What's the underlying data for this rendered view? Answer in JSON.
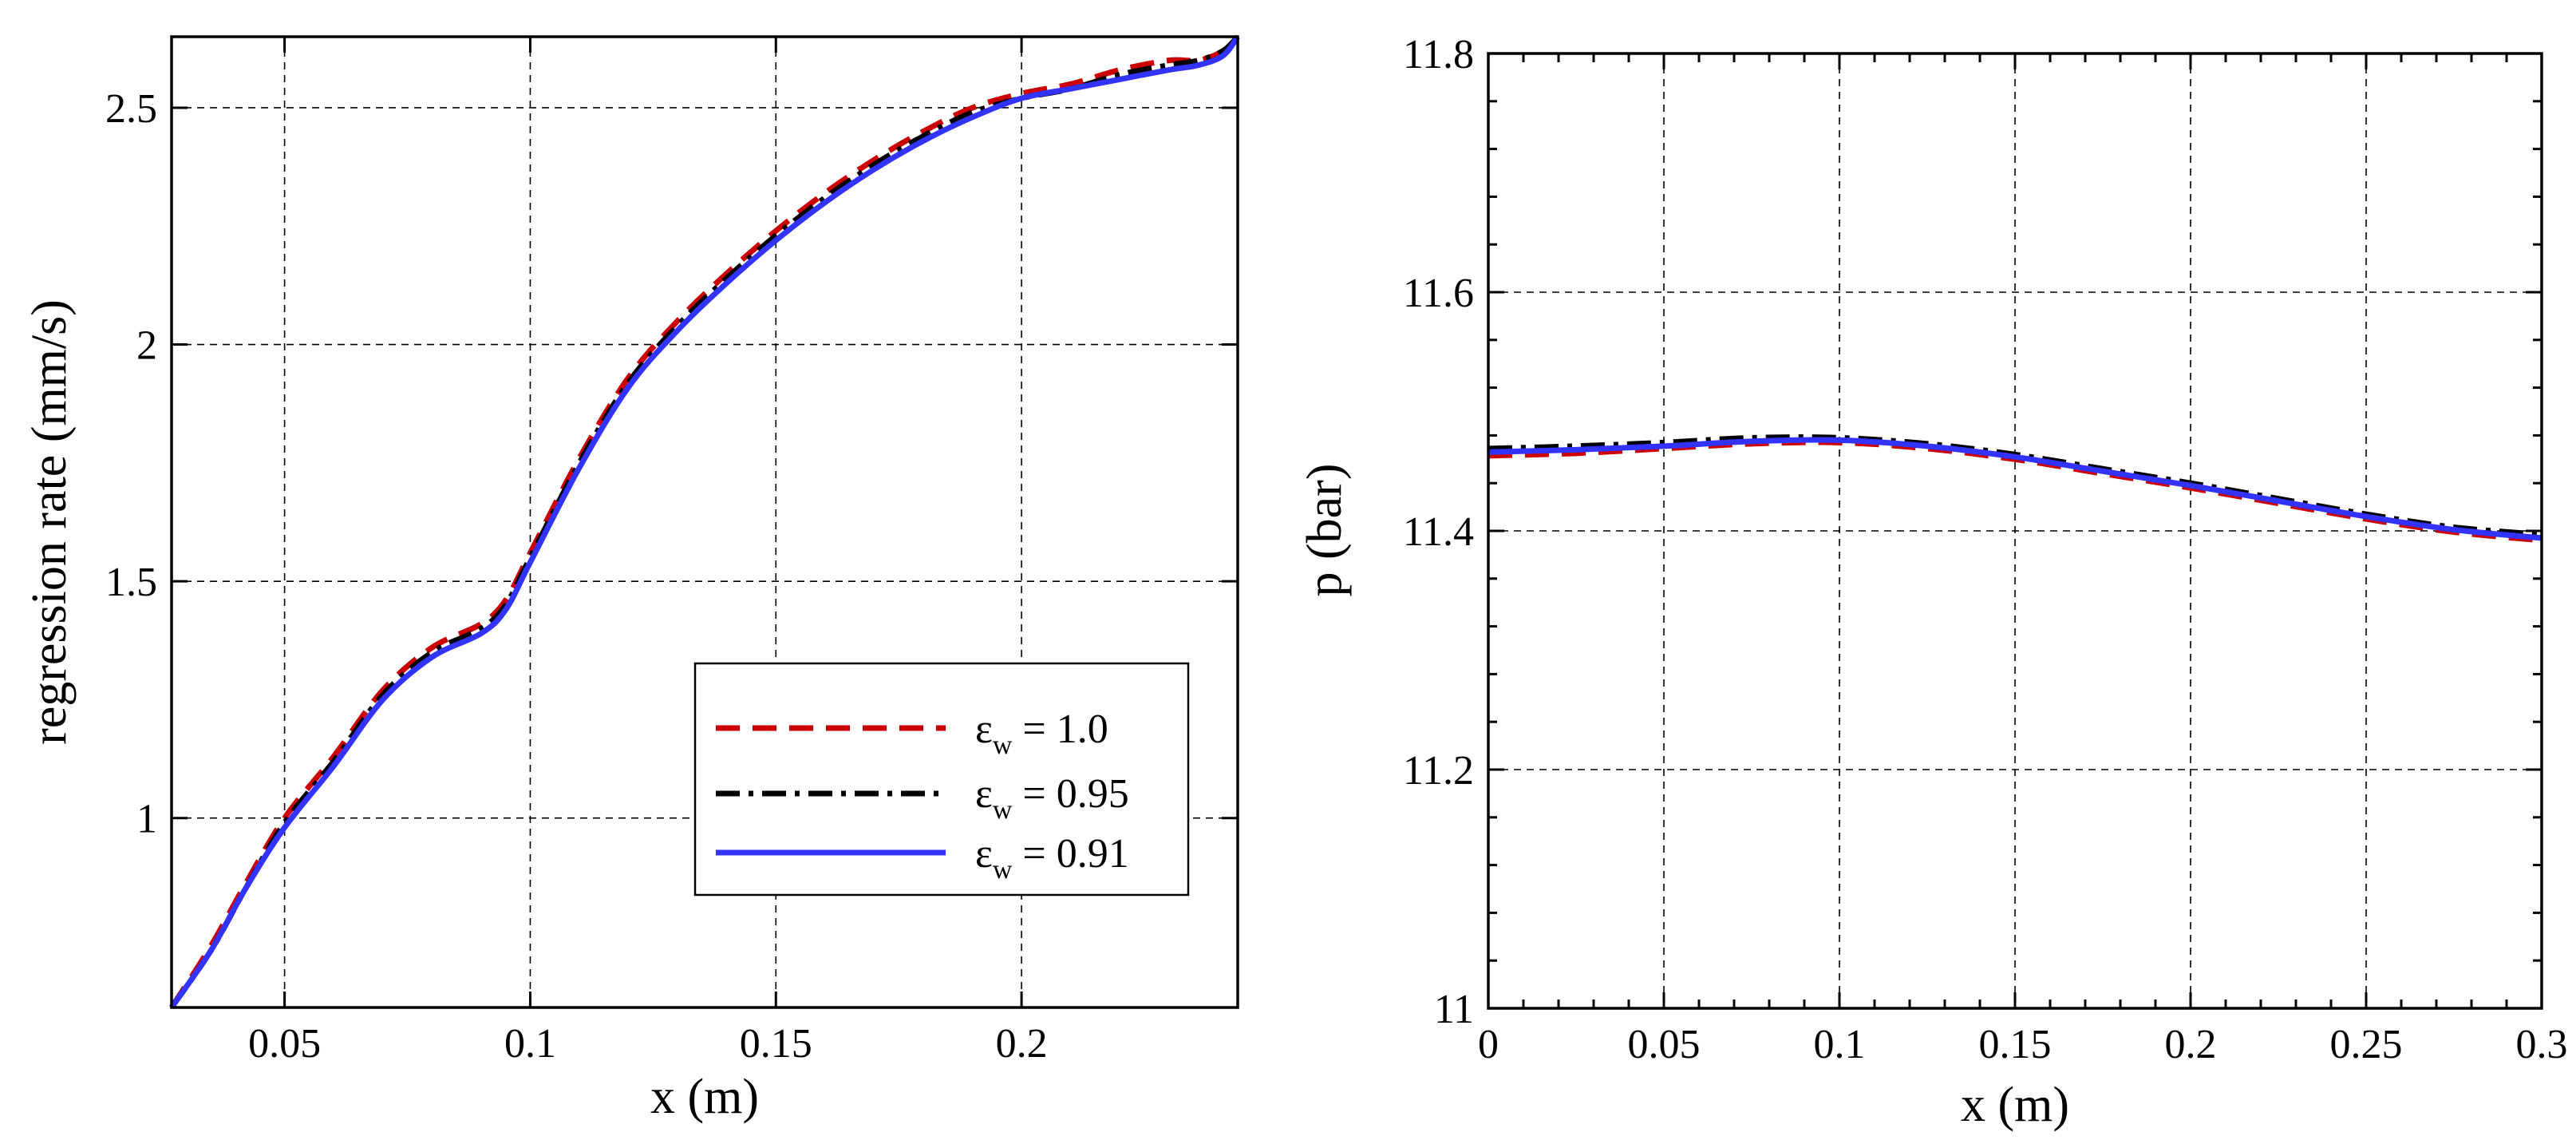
{
  "chart_data": [
    {
      "type": "line",
      "title": "",
      "xlabel": "x (m)",
      "ylabel": "regression rate (mm/s)",
      "xlim": [
        0.027,
        0.244
      ],
      "ylim": [
        0.6,
        2.65
      ],
      "xticks": [
        0.05,
        0.1,
        0.15,
        0.2
      ],
      "xtick_labels": [
        "0.05",
        "0.1",
        "0.15",
        "0.2"
      ],
      "yticks": [
        1,
        1.5,
        2,
        2.5
      ],
      "ytick_labels": [
        "1",
        "1.5",
        "2",
        "2.5"
      ],
      "grid": true,
      "legend_position": "lower-right",
      "series": [
        {
          "name": "εw = 1.0",
          "legend_symbol": "ε",
          "legend_sub": "w",
          "legend_value": " = 1.0",
          "color": "#cc0000",
          "dash": "dashed",
          "x": [
            0.027,
            0.035,
            0.042,
            0.05,
            0.06,
            0.07,
            0.08,
            0.09,
            0.095,
            0.1,
            0.11,
            0.12,
            0.13,
            0.14,
            0.15,
            0.16,
            0.17,
            0.18,
            0.19,
            0.2,
            0.21,
            0.22,
            0.23,
            0.236,
            0.241,
            0.244
          ],
          "y": [
            0.6,
            0.73,
            0.86,
            1.0,
            1.13,
            1.27,
            1.36,
            1.41,
            1.46,
            1.56,
            1.76,
            1.93,
            2.05,
            2.15,
            2.24,
            2.32,
            2.39,
            2.45,
            2.5,
            2.53,
            2.55,
            2.58,
            2.6,
            2.6,
            2.62,
            2.65
          ]
        },
        {
          "name": "εw = 0.95",
          "legend_symbol": "ε",
          "legend_sub": "w",
          "legend_value": " = 0.95",
          "color": "#000000",
          "dash": "dashdot",
          "x": [
            0.027,
            0.035,
            0.042,
            0.05,
            0.06,
            0.07,
            0.08,
            0.09,
            0.095,
            0.1,
            0.11,
            0.12,
            0.13,
            0.14,
            0.15,
            0.16,
            0.17,
            0.18,
            0.19,
            0.2,
            0.21,
            0.22,
            0.23,
            0.236,
            0.241,
            0.244
          ],
          "y": [
            0.6,
            0.72,
            0.85,
            0.99,
            1.12,
            1.26,
            1.35,
            1.4,
            1.45,
            1.55,
            1.75,
            1.92,
            2.04,
            2.14,
            2.23,
            2.31,
            2.38,
            2.44,
            2.49,
            2.52,
            2.54,
            2.57,
            2.59,
            2.6,
            2.62,
            2.65
          ]
        },
        {
          "name": "εw = 0.91",
          "legend_symbol": "ε",
          "legend_sub": "w",
          "legend_value": " = 0.91",
          "color": "#3333ff",
          "dash": "solid",
          "x": [
            0.027,
            0.035,
            0.042,
            0.05,
            0.06,
            0.07,
            0.08,
            0.09,
            0.095,
            0.1,
            0.11,
            0.12,
            0.13,
            0.14,
            0.15,
            0.16,
            0.17,
            0.18,
            0.19,
            0.2,
            0.21,
            0.22,
            0.23,
            0.236,
            0.241,
            0.244
          ],
          "y": [
            0.6,
            0.72,
            0.85,
            0.98,
            1.11,
            1.25,
            1.34,
            1.39,
            1.44,
            1.54,
            1.74,
            1.91,
            2.03,
            2.13,
            2.22,
            2.3,
            2.37,
            2.43,
            2.48,
            2.52,
            2.54,
            2.56,
            2.58,
            2.59,
            2.61,
            2.65
          ]
        }
      ]
    },
    {
      "type": "line",
      "title": "",
      "xlabel": "x (m)",
      "ylabel": "p (bar)",
      "xlim": [
        0,
        0.3
      ],
      "ylim": [
        11,
        11.8
      ],
      "xticks": [
        0,
        0.05,
        0.1,
        0.15,
        0.2,
        0.25,
        0.3
      ],
      "xtick_labels": [
        "0",
        "0.05",
        "0.1",
        "0.15",
        "0.2",
        "0.25",
        "0.3"
      ],
      "yticks": [
        11,
        11.2,
        11.4,
        11.6,
        11.8
      ],
      "ytick_labels": [
        "11",
        "11.2",
        "11.4",
        "11.6",
        "11.8"
      ],
      "grid": true,
      "series": [
        {
          "name": "εw = 1.0",
          "color": "#cc0000",
          "dash": "dashed",
          "x": [
            0,
            0.025,
            0.05,
            0.075,
            0.1,
            0.125,
            0.15,
            0.175,
            0.2,
            0.225,
            0.25,
            0.275,
            0.3
          ],
          "y": [
            11.463,
            11.465,
            11.469,
            11.473,
            11.474,
            11.469,
            11.46,
            11.448,
            11.436,
            11.423,
            11.41,
            11.399,
            11.392
          ]
        },
        {
          "name": "εw = 0.95",
          "color": "#000000",
          "dash": "dashdot",
          "x": [
            0,
            0.025,
            0.05,
            0.075,
            0.1,
            0.125,
            0.15,
            0.175,
            0.2,
            0.225,
            0.25,
            0.275,
            0.3
          ],
          "y": [
            11.469,
            11.471,
            11.474,
            11.478,
            11.478,
            11.473,
            11.464,
            11.452,
            11.44,
            11.427,
            11.414,
            11.403,
            11.397
          ]
        },
        {
          "name": "εw = 0.91",
          "color": "#3333ff",
          "dash": "solid",
          "x": [
            0,
            0.025,
            0.05,
            0.075,
            0.1,
            0.125,
            0.15,
            0.175,
            0.2,
            0.225,
            0.25,
            0.275,
            0.3
          ],
          "y": [
            11.466,
            11.468,
            11.471,
            11.475,
            11.476,
            11.471,
            11.462,
            11.45,
            11.438,
            11.425,
            11.412,
            11.401,
            11.394
          ]
        }
      ]
    }
  ]
}
